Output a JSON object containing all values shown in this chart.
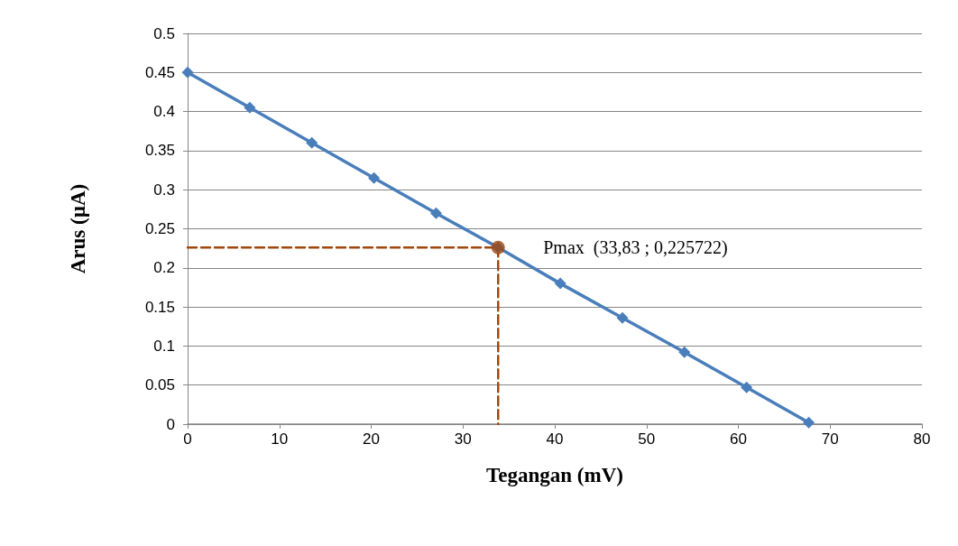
{
  "chart_data": {
    "type": "line",
    "xlabel": "Tegangan (mV)",
    "ylabel": "Arus (µA)",
    "xlim": [
      0,
      80
    ],
    "xticks": [
      0,
      10,
      20,
      30,
      40,
      50,
      60,
      70,
      80
    ],
    "ylim": [
      0,
      0.5
    ],
    "yticks": [
      0,
      0.05,
      0.1,
      0.15,
      0.2,
      0.25,
      0.3,
      0.35,
      0.4,
      0.45,
      0.5
    ],
    "grid": "y",
    "marker": "diamond",
    "line_style": "solid",
    "series": [
      {
        "color": "#4a7ebb",
        "x": [
          0,
          6.77,
          13.53,
          20.3,
          27.07,
          33.83,
          40.6,
          47.37,
          54.13,
          60.9,
          67.67
        ],
        "values": [
          0.45,
          0.405,
          0.36,
          0.315,
          0.27,
          0.226,
          0.18,
          0.136,
          0.092,
          0.047,
          0.002
        ]
      },
      {
        "color": "#a0470e",
        "marker": "none",
        "line_style": "dashed",
        "x": [
          0,
          33.83
        ],
        "values": [
          0.226,
          0.226
        ]
      },
      {
        "color": "#a0470e",
        "marker": "none",
        "line_style": "dashed",
        "x": [
          33.83,
          33.83
        ],
        "values": [
          0.226,
          0
        ]
      },
      {
        "type": "scatter",
        "color": "#a0470e",
        "marker": "circle",
        "x": [
          33.83
        ],
        "values": [
          0.226
        ]
      }
    ],
    "annotations": [
      {
        "text": "Pmax  (33,83 ; 0,225722)",
        "x": 33.83,
        "y": 0.226
      }
    ]
  }
}
